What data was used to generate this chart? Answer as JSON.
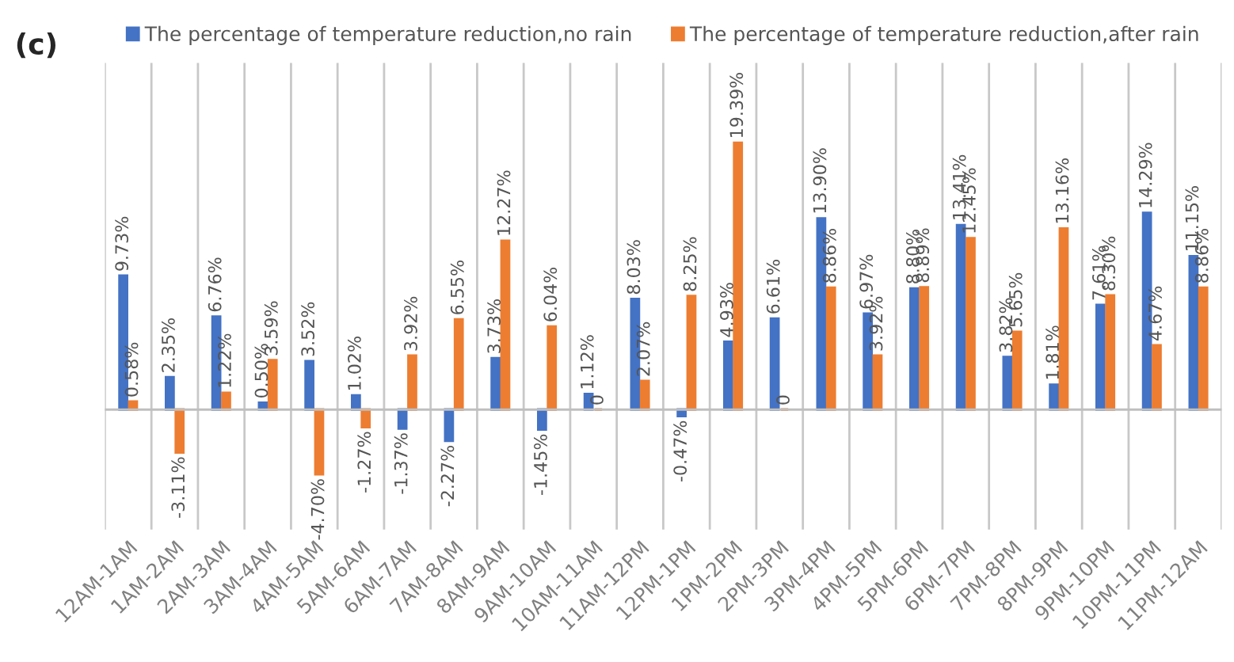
{
  "chart_data": {
    "type": "bar",
    "categories": [
      "12AM-1AM",
      "1AM-2AM",
      "2AM-3AM",
      "3AM-4AM",
      "4AM-5AM",
      "5AM-6AM",
      "6AM-7AM",
      "7AM-8AM",
      "8AM-9AM",
      "9AM-10AM",
      "10AM-11AM",
      "11AM-12PM",
      "12PM-1PM",
      "1PM-2PM",
      "2PM-3PM",
      "3PM-4PM",
      "4PM-5PM",
      "5PM-6PM",
      "6PM-7PM",
      "7PM-8PM",
      "8PM-9PM",
      "9PM-10PM",
      "10PM-11PM",
      "11PM-12AM"
    ],
    "series": [
      {
        "name": "The percentage of temperature reduction,no rain",
        "color": "#4472c4",
        "values": [
          9.73,
          2.35,
          6.76,
          0.5,
          3.52,
          1.02,
          -1.37,
          -2.27,
          3.73,
          -1.45,
          1.12,
          8.03,
          -0.47,
          4.93,
          6.61,
          13.9,
          6.97,
          8.8,
          13.41,
          3.82,
          1.81,
          7.61,
          14.29,
          11.15
        ],
        "value_labels": [
          "9.73%",
          "2.35%",
          "6.76%",
          "0.50%",
          "3.52%",
          "1.02%",
          "-1.37%",
          "-2.27%",
          "3.73%",
          "-1.45%",
          "1.12%",
          "8.03%",
          "-0.47%",
          "4.93%",
          "6.61%",
          "13.90%",
          "6.97%",
          "8.80%",
          "13.41%",
          "3.82%",
          "1.81%",
          "7.61%",
          "14.29%",
          "11.15%"
        ]
      },
      {
        "name": "The percentage of temperature reduction,after rain",
        "color": "#ed7d31",
        "values": [
          0.58,
          -3.11,
          1.22,
          3.59,
          -4.7,
          -1.27,
          3.92,
          6.55,
          12.27,
          6.04,
          0,
          2.07,
          8.25,
          19.39,
          0,
          8.86,
          3.92,
          8.89,
          12.45,
          5.65,
          13.16,
          8.3,
          4.67,
          8.86
        ],
        "value_labels": [
          "0.58%",
          "-3.11%",
          "1.22%",
          "3.59%",
          "-4.70%",
          "-1.27%",
          "3.92%",
          "6.55%",
          "12.27%",
          "6.04%",
          "0",
          "2.07%",
          "8.25%",
          "19.39%",
          "0",
          "8.86%",
          "3.92%",
          "8.89%",
          "12.45%",
          "5.65%",
          "13.16%",
          "8.30%",
          "4.67%",
          "8.86%"
        ]
      }
    ],
    "annotations": [
      "(c)"
    ],
    "grid": "x",
    "legend": "top",
    "tick_labels": "x"
  }
}
